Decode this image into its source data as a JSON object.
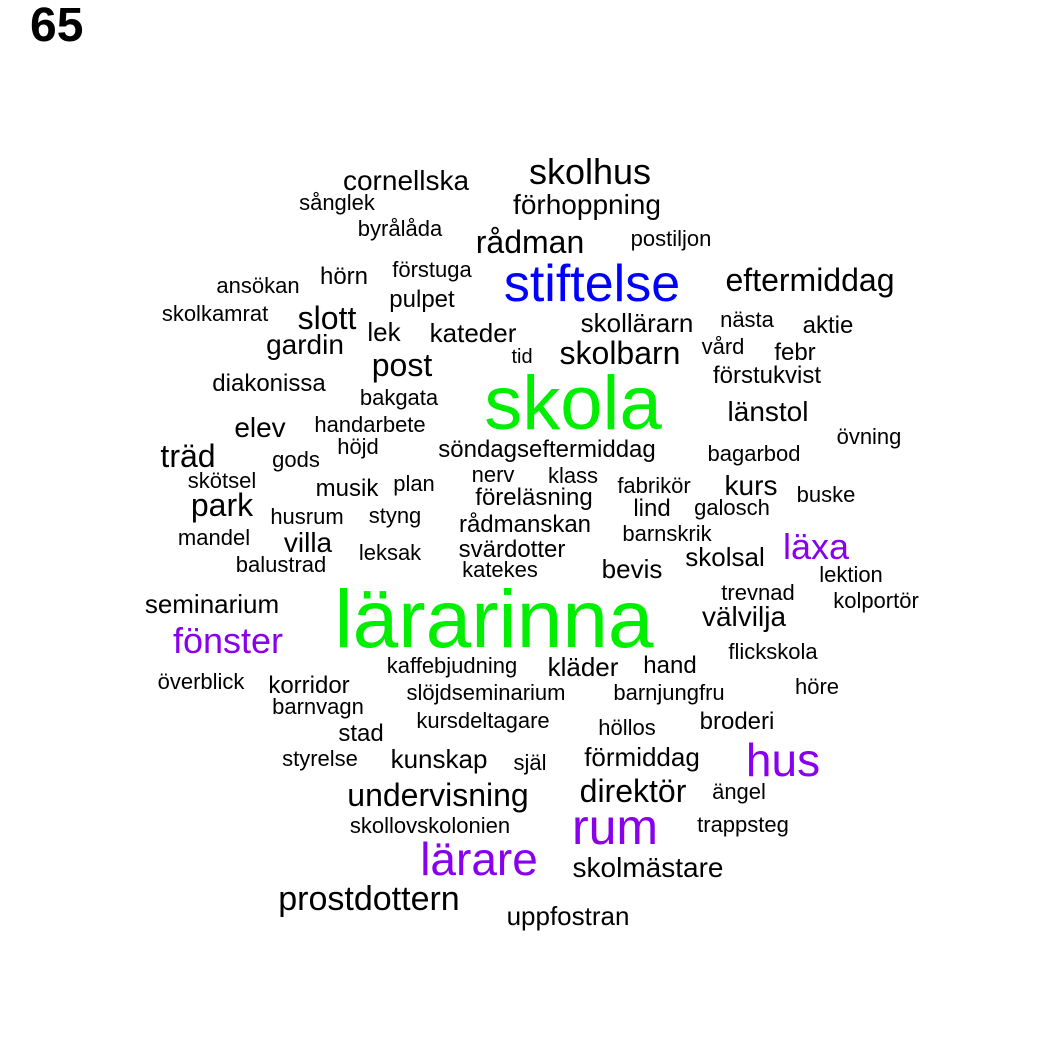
{
  "page_number": "65",
  "colors": {
    "default": "#000000",
    "green": "#00ee00",
    "blue": "#0000ff",
    "purple": "#8800ee"
  },
  "words": [
    {
      "text": "skolhus",
      "color": "default"
    },
    {
      "text": "cornellska",
      "color": "default"
    },
    {
      "text": "sånglek",
      "color": "default"
    },
    {
      "text": "förhoppning",
      "color": "default"
    },
    {
      "text": "byrålåda",
      "color": "default"
    },
    {
      "text": "rådman",
      "color": "default"
    },
    {
      "text": "postiljon",
      "color": "default"
    },
    {
      "text": "ansökan",
      "color": "default"
    },
    {
      "text": "hörn",
      "color": "default"
    },
    {
      "text": "förstuga",
      "color": "default"
    },
    {
      "text": "stiftelse",
      "color": "blue"
    },
    {
      "text": "eftermiddag",
      "color": "default"
    },
    {
      "text": "pulpet",
      "color": "default"
    },
    {
      "text": "skolkamrat",
      "color": "default"
    },
    {
      "text": "slott",
      "color": "default"
    },
    {
      "text": "skollärarn",
      "color": "default"
    },
    {
      "text": "nästa",
      "color": "default"
    },
    {
      "text": "aktie",
      "color": "default"
    },
    {
      "text": "lek",
      "color": "default"
    },
    {
      "text": "kateder",
      "color": "default"
    },
    {
      "text": "gardin",
      "color": "default"
    },
    {
      "text": "skolbarn",
      "color": "default"
    },
    {
      "text": "vård",
      "color": "default"
    },
    {
      "text": "febr",
      "color": "default"
    },
    {
      "text": "tid",
      "color": "default"
    },
    {
      "text": "post",
      "color": "default"
    },
    {
      "text": "förstukvist",
      "color": "default"
    },
    {
      "text": "diakonissa",
      "color": "default"
    },
    {
      "text": "bakgata",
      "color": "default"
    },
    {
      "text": "skola",
      "color": "green"
    },
    {
      "text": "länstol",
      "color": "default"
    },
    {
      "text": "elev",
      "color": "default"
    },
    {
      "text": "handarbete",
      "color": "default"
    },
    {
      "text": "övning",
      "color": "default"
    },
    {
      "text": "höjd",
      "color": "default"
    },
    {
      "text": "söndagseftermiddag",
      "color": "default"
    },
    {
      "text": "träd",
      "color": "default"
    },
    {
      "text": "gods",
      "color": "default"
    },
    {
      "text": "bagarbod",
      "color": "default"
    },
    {
      "text": "nerv",
      "color": "default"
    },
    {
      "text": "klass",
      "color": "default"
    },
    {
      "text": "skötsel",
      "color": "default"
    },
    {
      "text": "musik",
      "color": "default"
    },
    {
      "text": "plan",
      "color": "default"
    },
    {
      "text": "fabrikör",
      "color": "default"
    },
    {
      "text": "kurs",
      "color": "default"
    },
    {
      "text": "buske",
      "color": "default"
    },
    {
      "text": "park",
      "color": "default"
    },
    {
      "text": "föreläsning",
      "color": "default"
    },
    {
      "text": "lind",
      "color": "default"
    },
    {
      "text": "galosch",
      "color": "default"
    },
    {
      "text": "husrum",
      "color": "default"
    },
    {
      "text": "styng",
      "color": "default"
    },
    {
      "text": "rådmanskan",
      "color": "default"
    },
    {
      "text": "mandel",
      "color": "default"
    },
    {
      "text": "barnskrik",
      "color": "default"
    },
    {
      "text": "villa",
      "color": "default"
    },
    {
      "text": "läxa",
      "color": "purple"
    },
    {
      "text": "svärdotter",
      "color": "default"
    },
    {
      "text": "leksak",
      "color": "default"
    },
    {
      "text": "skolsal",
      "color": "default"
    },
    {
      "text": "balustrad",
      "color": "default"
    },
    {
      "text": "katekes",
      "color": "default"
    },
    {
      "text": "bevis",
      "color": "default"
    },
    {
      "text": "lektion",
      "color": "default"
    },
    {
      "text": "trevnad",
      "color": "default"
    },
    {
      "text": "seminarium",
      "color": "default"
    },
    {
      "text": "kolportör",
      "color": "default"
    },
    {
      "text": "lärarinna",
      "color": "green"
    },
    {
      "text": "välvilja",
      "color": "default"
    },
    {
      "text": "fönster",
      "color": "purple"
    },
    {
      "text": "flickskola",
      "color": "default"
    },
    {
      "text": "kaffebjudning",
      "color": "default"
    },
    {
      "text": "kläder",
      "color": "default"
    },
    {
      "text": "hand",
      "color": "default"
    },
    {
      "text": "överblick",
      "color": "default"
    },
    {
      "text": "korridor",
      "color": "default"
    },
    {
      "text": "höre",
      "color": "default"
    },
    {
      "text": "slöjdseminarium",
      "color": "default"
    },
    {
      "text": "barnjungfru",
      "color": "default"
    },
    {
      "text": "barnvagn",
      "color": "default"
    },
    {
      "text": "broderi",
      "color": "default"
    },
    {
      "text": "kursdeltagare",
      "color": "default"
    },
    {
      "text": "höllos",
      "color": "default"
    },
    {
      "text": "stad",
      "color": "default"
    },
    {
      "text": "hus",
      "color": "purple"
    },
    {
      "text": "styrelse",
      "color": "default"
    },
    {
      "text": "kunskap",
      "color": "default"
    },
    {
      "text": "själ",
      "color": "default"
    },
    {
      "text": "förmiddag",
      "color": "default"
    },
    {
      "text": "direktör",
      "color": "default"
    },
    {
      "text": "ängel",
      "color": "default"
    },
    {
      "text": "undervisning",
      "color": "default"
    },
    {
      "text": "rum",
      "color": "purple"
    },
    {
      "text": "skollovskolonien",
      "color": "default"
    },
    {
      "text": "trappsteg",
      "color": "default"
    },
    {
      "text": "lärare",
      "color": "purple"
    },
    {
      "text": "skolmästare",
      "color": "default"
    },
    {
      "text": "prostdottern",
      "color": "default"
    },
    {
      "text": "uppfostran",
      "color": "default"
    }
  ]
}
